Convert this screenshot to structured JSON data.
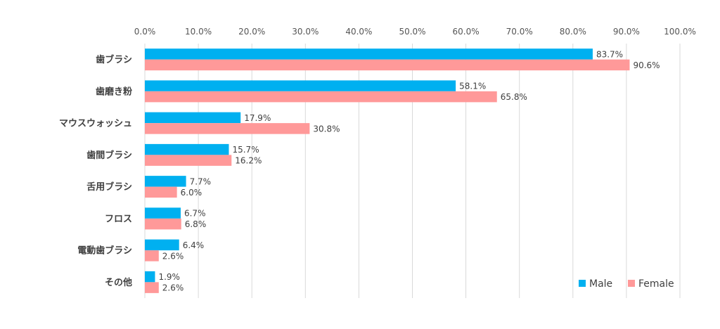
{
  "chart_data": {
    "type": "bar",
    "orientation": "horizontal",
    "categories": [
      "歯ブラシ",
      "歯磨き粉",
      "マウスウォッシュ",
      "歯間ブラシ",
      "舌用ブラシ",
      "フロス",
      "電動歯ブラシ",
      "その他"
    ],
    "series": [
      {
        "name": "Male",
        "color": "#00b0f0",
        "values": [
          83.7,
          58.1,
          17.9,
          15.7,
          7.7,
          6.7,
          6.4,
          1.9
        ]
      },
      {
        "name": "Female",
        "color": "#ff9999",
        "values": [
          90.6,
          65.8,
          30.8,
          16.2,
          6.0,
          6.8,
          2.6,
          2.6
        ]
      }
    ],
    "xlim": [
      0,
      100
    ],
    "x_ticks": [
      "0.0%",
      "10.0%",
      "20.0%",
      "30.0%",
      "40.0%",
      "50.0%",
      "60.0%",
      "70.0%",
      "80.0%",
      "90.0%",
      "100.0%"
    ],
    "value_suffix": "%",
    "x_axis_position": "top",
    "grid": true,
    "legend_position": "bottom-right"
  }
}
